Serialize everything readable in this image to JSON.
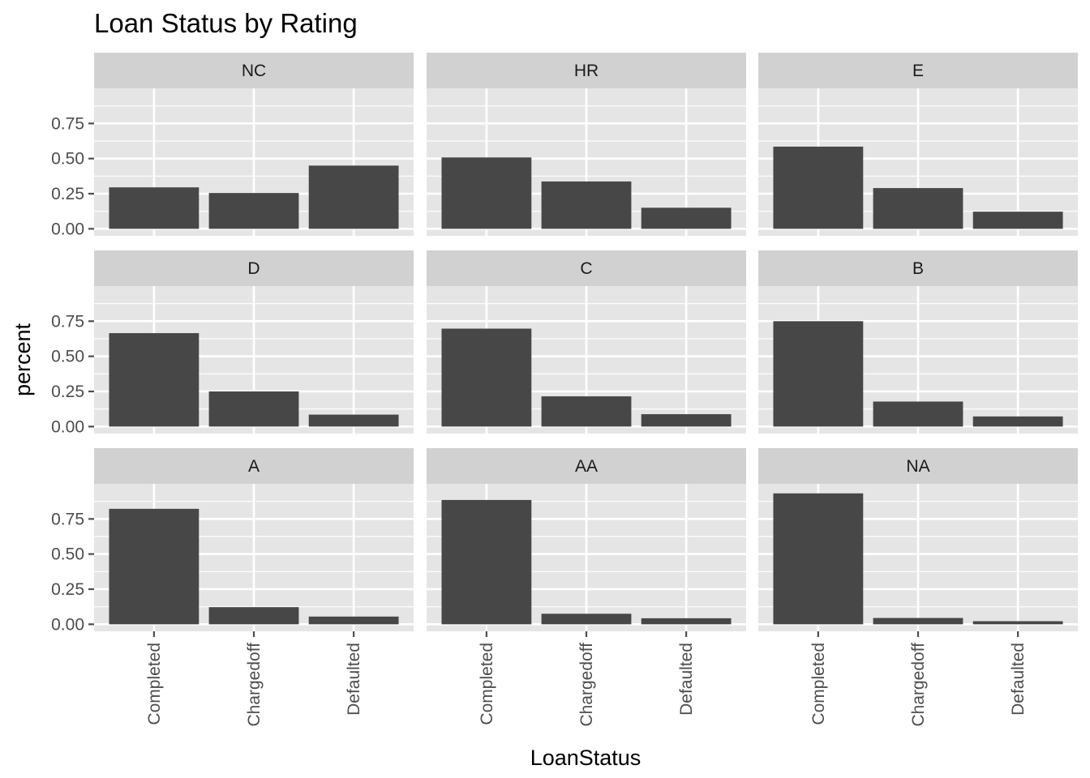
{
  "chart_data": {
    "type": "bar",
    "title": "Loan Status by Rating",
    "xlabel": "LoanStatus",
    "ylabel": "percent",
    "categories": [
      "Completed",
      "Chargedoff",
      "Defaulted"
    ],
    "y_ticks": [
      "0.00",
      "0.25",
      "0.50",
      "0.75"
    ],
    "ylim": [
      -0.05,
      1.0
    ],
    "grid": true,
    "colors": {
      "bar": "#474747",
      "panel": "#e5e5e5",
      "strip": "#d1d1d1",
      "grid": "#ffffff",
      "tick": "#4d4d4d"
    },
    "panels": [
      {
        "name": "NC",
        "values": [
          0.295,
          0.255,
          0.45
        ]
      },
      {
        "name": "HR",
        "values": [
          0.508,
          0.337,
          0.15
        ]
      },
      {
        "name": "E",
        "values": [
          0.585,
          0.29,
          0.122
        ]
      },
      {
        "name": "D",
        "values": [
          0.665,
          0.25,
          0.085
        ]
      },
      {
        "name": "C",
        "values": [
          0.697,
          0.215,
          0.088
        ]
      },
      {
        "name": "B",
        "values": [
          0.75,
          0.178,
          0.072
        ]
      },
      {
        "name": "A",
        "values": [
          0.822,
          0.122,
          0.055
        ]
      },
      {
        "name": "AA",
        "values": [
          0.885,
          0.075,
          0.043
        ]
      },
      {
        "name": "NA",
        "values": [
          0.932,
          0.045,
          0.022
        ]
      }
    ]
  }
}
